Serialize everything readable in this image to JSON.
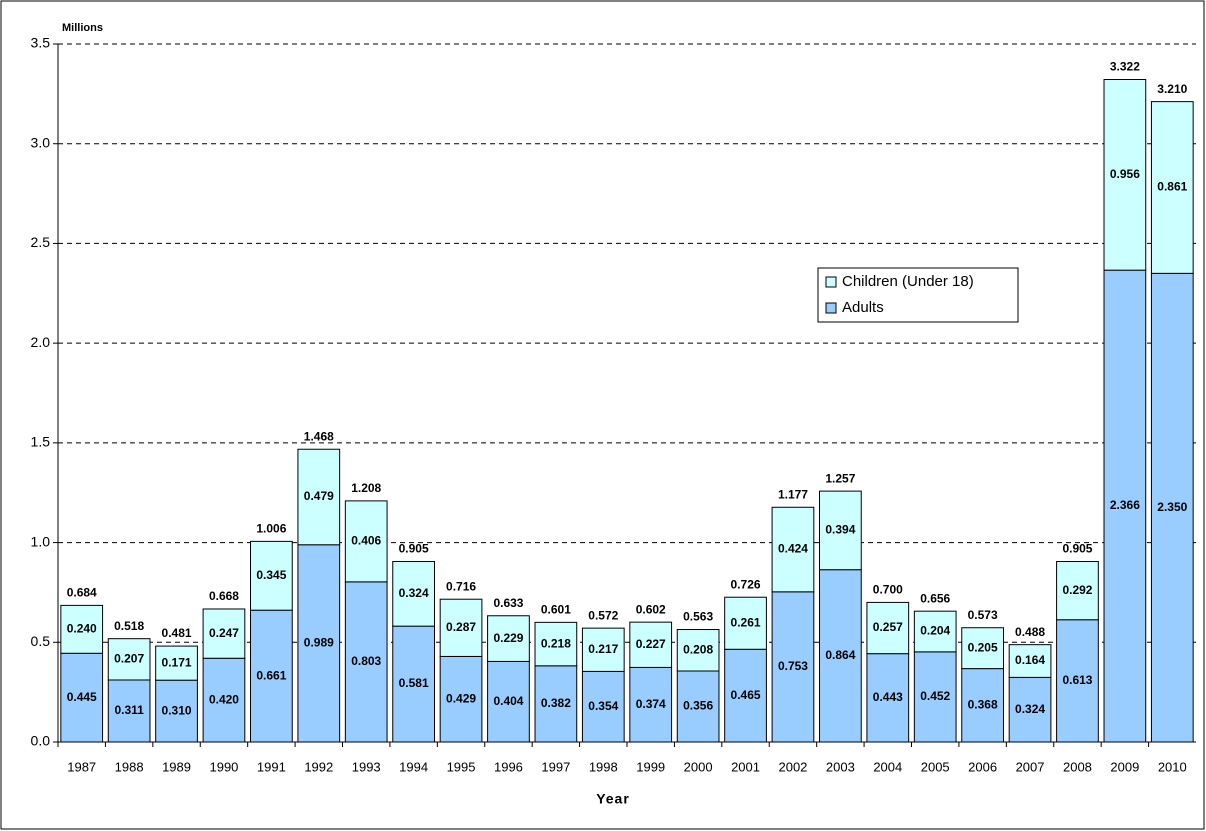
{
  "chart_data": {
    "type": "stacked_bar",
    "y_unit_label": "Millions",
    "x_label": "Year",
    "categories": [
      "1987",
      "1988",
      "1989",
      "1990",
      "1991",
      "1992",
      "1993",
      "1994",
      "1995",
      "1996",
      "1997",
      "1998",
      "1999",
      "2000",
      "2001",
      "2002",
      "2003",
      "2004",
      "2005",
      "2006",
      "2007",
      "2008",
      "2009",
      "2010"
    ],
    "series": [
      {
        "name": "Adults",
        "color": "#99ccff",
        "values": [
          0.445,
          0.311,
          0.31,
          0.42,
          0.661,
          0.989,
          0.803,
          0.581,
          0.429,
          0.404,
          0.382,
          0.354,
          0.374,
          0.356,
          0.465,
          0.753,
          0.864,
          0.443,
          0.452,
          0.368,
          0.324,
          0.613,
          2.366,
          2.35
        ],
        "value_labels": [
          "0.445",
          "0.311",
          "0.310",
          "0.420",
          "0.661",
          "0.989",
          "0.803",
          "0.581",
          "0.429",
          "0.404",
          "0.382",
          "0.354",
          "0.374",
          "0.356",
          "0.465",
          "0.753",
          "0.864",
          "0.443",
          "0.452",
          "0.368",
          "0.324",
          "0.613",
          "2.366",
          "2.350"
        ]
      },
      {
        "name": "Children (Under 18)",
        "color": "#ccffff",
        "values": [
          0.24,
          0.207,
          0.171,
          0.247,
          0.345,
          0.479,
          0.406,
          0.324,
          0.287,
          0.229,
          0.218,
          0.217,
          0.227,
          0.208,
          0.261,
          0.424,
          0.394,
          0.257,
          0.204,
          0.205,
          0.164,
          0.292,
          0.956,
          0.861
        ],
        "value_labels": [
          "0.240",
          "0.207",
          "0.171",
          "0.247",
          "0.345",
          "0.479",
          "0.406",
          "0.324",
          "0.287",
          "0.229",
          "0.218",
          "0.217",
          "0.227",
          "0.208",
          "0.261",
          "0.424",
          "0.394",
          "0.257",
          "0.204",
          "0.205",
          "0.164",
          "0.292",
          "0.956",
          "0.861"
        ]
      }
    ],
    "totals": [
      0.684,
      0.518,
      0.481,
      0.668,
      1.006,
      1.468,
      1.208,
      0.905,
      0.716,
      0.633,
      0.601,
      0.572,
      0.602,
      0.563,
      0.726,
      1.177,
      1.257,
      0.7,
      0.656,
      0.573,
      0.488,
      0.905,
      3.322,
      3.21
    ],
    "total_labels": [
      "0.684",
      "0.518",
      "0.481",
      "0.668",
      "1.006",
      "1.468",
      "1.208",
      "0.905",
      "0.716",
      "0.633",
      "0.601",
      "0.572",
      "0.602",
      "0.563",
      "0.726",
      "1.177",
      "1.257",
      "0.700",
      "0.656",
      "0.573",
      "0.488",
      "0.905",
      "3.322",
      "3.210"
    ],
    "ylim": [
      0,
      3.5
    ],
    "yticks": [
      {
        "value": 0,
        "label": "0.0"
      },
      0.5,
      {
        "value": 1,
        "label": "1.0"
      },
      1.5,
      {
        "value": 2,
        "label": "2.0"
      },
      2.5,
      {
        "value": 3,
        "label": "3.0"
      },
      3.5
    ],
    "grid": true
  }
}
